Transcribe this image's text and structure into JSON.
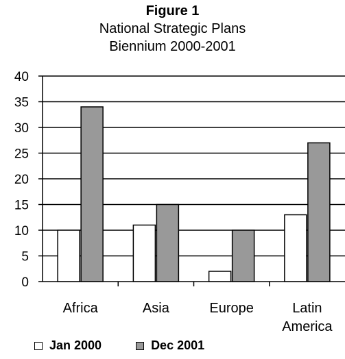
{
  "chart_data": {
    "type": "bar",
    "title": "Figure 1",
    "subtitle": [
      "National Strategic Plans",
      "Biennium 2000-2001"
    ],
    "categories": [
      [
        "Africa"
      ],
      [
        "Asia"
      ],
      [
        "Europe"
      ],
      [
        "Latin",
        "America"
      ]
    ],
    "series": [
      {
        "name": "Jan 2000",
        "values": [
          10,
          11,
          2,
          13
        ],
        "color": "#ffffff"
      },
      {
        "name": "Dec 2001",
        "values": [
          34,
          15,
          10,
          27
        ],
        "color": "#999999"
      }
    ],
    "ylim": [
      0,
      40
    ],
    "yticks": [
      0,
      5,
      10,
      15,
      20,
      25,
      30,
      35,
      40
    ],
    "grid": true,
    "legend": "bottom"
  }
}
